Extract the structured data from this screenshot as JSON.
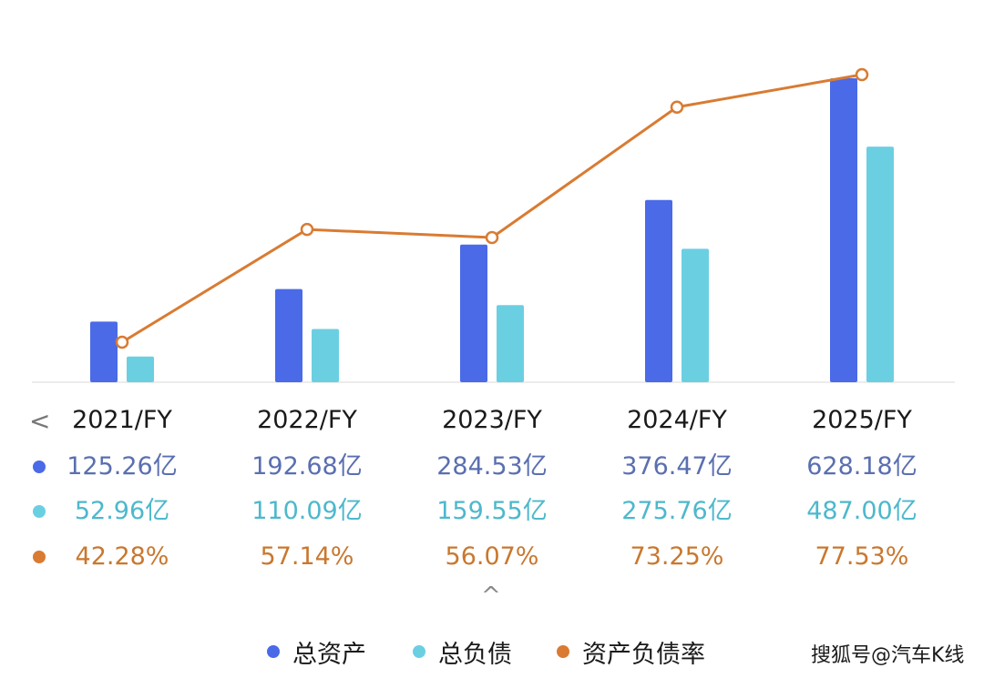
{
  "chart_data": {
    "type": "bar",
    "categories": [
      "2021/FY",
      "2022/FY",
      "2023/FY",
      "2024/FY",
      "2025/FY"
    ],
    "series": [
      {
        "name": "总资产",
        "kind": "bar",
        "color": "#4a6ae8",
        "values": [
          125.26,
          192.68,
          284.53,
          376.47,
          628.18
        ],
        "labels": [
          "125.26亿",
          "192.68亿",
          "284.53亿",
          "376.47亿",
          "628.18亿"
        ]
      },
      {
        "name": "总负债",
        "kind": "bar",
        "color": "#6bcfe2",
        "values": [
          52.96,
          110.09,
          159.55,
          275.76,
          487.0
        ],
        "labels": [
          "52.96亿",
          "110.09亿",
          "159.55亿",
          "275.76亿",
          "487.00亿"
        ]
      },
      {
        "name": "资产负债率",
        "kind": "line",
        "color": "#d97b32",
        "values": [
          42.28,
          57.14,
          56.07,
          73.25,
          77.53
        ],
        "labels": [
          "42.28%",
          "57.14%",
          "56.07%",
          "73.25%",
          "77.53%"
        ]
      }
    ],
    "ylim": [
      0,
      628.18
    ],
    "line_ylim": [
      28.7,
      78.2
    ],
    "grid": false,
    "legend": "bottom",
    "title": "",
    "xlabel": "",
    "ylabel": ""
  },
  "ui": {
    "prev_icon": "chevron-left-icon",
    "collapse_icon": "chevron-up-icon",
    "prev_glyph": "<",
    "collapse_glyph": "^"
  },
  "watermark": "搜狐号@汽车K线"
}
